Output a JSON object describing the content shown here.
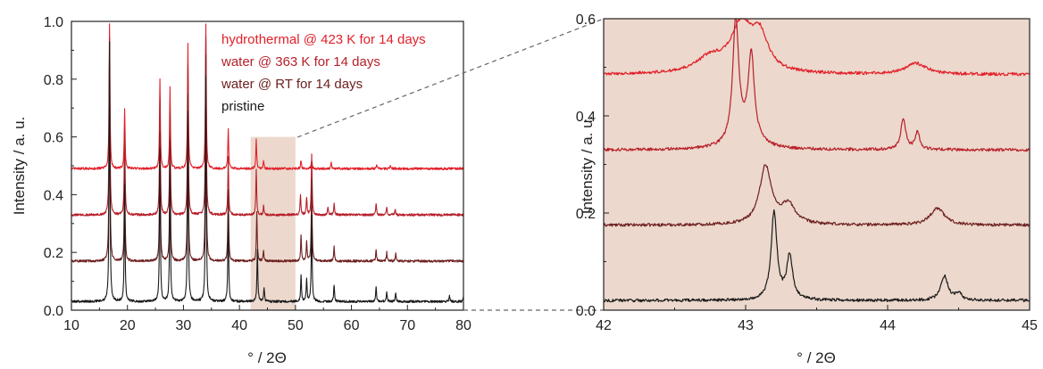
{
  "chart_data": [
    {
      "type": "line",
      "xlabel": "° / 2Θ",
      "ylabel": "Intensity / a. u.",
      "xlim": [
        10,
        80
      ],
      "ylim": [
        0.0,
        1.0
      ],
      "xticks": [
        "10",
        "20",
        "30",
        "40",
        "50",
        "60",
        "70",
        "80"
      ],
      "yticks": [
        "0.0",
        "0.2",
        "0.4",
        "0.6",
        "0.8",
        "1.0"
      ],
      "grid": false,
      "legend_position": "top-center",
      "highlight_region": {
        "x": [
          42,
          50
        ],
        "y": [
          0.0,
          0.6
        ],
        "color": "#ecd8cc"
      },
      "series": [
        {
          "name": "hydrothermal @ 423 K for 14 days",
          "color": "#e2202a",
          "baseline": 0.49,
          "peaks": [
            [
              16.8,
              0.5
            ],
            [
              19.5,
              0.21
            ],
            [
              25.8,
              0.31
            ],
            [
              27.6,
              0.28
            ],
            [
              30.8,
              0.43
            ],
            [
              34.0,
              0.5
            ],
            [
              38.0,
              0.14
            ],
            [
              43.0,
              0.1
            ],
            [
              44.3,
              0.03
            ],
            [
              51.0,
              0.03
            ],
            [
              52.9,
              0.03
            ],
            [
              56.4,
              0.02
            ],
            [
              64.5,
              0.015
            ],
            [
              67.0,
              0.01
            ]
          ]
        },
        {
          "name": "water @ 363 K for 14 days",
          "color": "#b8202a",
          "baseline": 0.33,
          "peaks": [
            [
              16.8,
              0.61
            ],
            [
              19.5,
              0.3
            ],
            [
              25.8,
              0.4
            ],
            [
              27.6,
              0.35
            ],
            [
              30.8,
              0.52
            ],
            [
              34.0,
              0.62
            ],
            [
              38.0,
              0.2
            ],
            [
              43.0,
              0.16
            ],
            [
              44.3,
              0.03
            ],
            [
              50.9,
              0.07
            ],
            [
              52.0,
              0.06
            ],
            [
              52.9,
              0.21
            ],
            [
              55.8,
              0.03
            ],
            [
              56.9,
              0.04
            ],
            [
              64.4,
              0.04
            ],
            [
              66.3,
              0.025
            ],
            [
              67.8,
              0.02
            ]
          ]
        },
        {
          "name": "water @ RT for 14 days",
          "color": "#6e2020",
          "baseline": 0.17,
          "peaks": [
            [
              16.8,
              0.76
            ],
            [
              19.5,
              0.34
            ],
            [
              25.8,
              0.45
            ],
            [
              27.6,
              0.42
            ],
            [
              30.8,
              0.58
            ],
            [
              34.0,
              0.71
            ],
            [
              38.0,
              0.25
            ],
            [
              43.1,
              0.17
            ],
            [
              44.3,
              0.035
            ],
            [
              51.0,
              0.09
            ],
            [
              52.0,
              0.07
            ],
            [
              52.9,
              0.28
            ],
            [
              56.9,
              0.05
            ],
            [
              64.4,
              0.04
            ],
            [
              66.3,
              0.03
            ],
            [
              67.9,
              0.025
            ]
          ]
        },
        {
          "name": "pristine",
          "color": "#1a1a1a",
          "baseline": 0.03,
          "peaks": [
            [
              16.8,
              0.9
            ],
            [
              19.5,
              0.4
            ],
            [
              25.8,
              0.53
            ],
            [
              27.6,
              0.48
            ],
            [
              30.8,
              0.66
            ],
            [
              34.0,
              0.78
            ],
            [
              38.0,
              0.3
            ],
            [
              43.2,
              0.18
            ],
            [
              44.4,
              0.05
            ],
            [
              51.0,
              0.09
            ],
            [
              52.0,
              0.08
            ],
            [
              52.9,
              0.3
            ],
            [
              56.9,
              0.06
            ],
            [
              64.4,
              0.05
            ],
            [
              66.3,
              0.035
            ],
            [
              67.9,
              0.03
            ],
            [
              77.5,
              0.02
            ],
            [
              80.0,
              0.02
            ]
          ]
        }
      ]
    },
    {
      "type": "line",
      "xlabel": "° / 2Θ",
      "ylabel": "Intensity / a. u.",
      "xlim": [
        42,
        45
      ],
      "ylim": [
        0.0,
        0.6
      ],
      "xticks": [
        "42",
        "43",
        "44",
        "45"
      ],
      "yticks": [
        "0.0",
        "0.2",
        "0.4",
        "0.6"
      ],
      "grid": false,
      "background": "#ecd8cc",
      "series": [
        {
          "color": "#e2202a",
          "baseline": 0.485,
          "peaks": [
            [
              42.75,
              0.03,
              0.12
            ],
            [
              42.97,
              0.095,
              0.09
            ],
            [
              43.1,
              0.07,
              0.07
            ],
            [
              44.2,
              0.022,
              0.09
            ]
          ]
        },
        {
          "color": "#b8202a",
          "baseline": 0.33,
          "peaks": [
            [
              42.93,
              0.25,
              0.025
            ],
            [
              43.04,
              0.17,
              0.025
            ],
            [
              43.0,
              0.03,
              0.1
            ],
            [
              44.11,
              0.065,
              0.02
            ],
            [
              44.21,
              0.035,
              0.02
            ]
          ]
        },
        {
          "color": "#6e2020",
          "baseline": 0.175,
          "peaks": [
            [
              43.14,
              0.12,
              0.05
            ],
            [
              43.3,
              0.04,
              0.06
            ],
            [
              44.35,
              0.035,
              0.06
            ]
          ]
        },
        {
          "color": "#1a1a1a",
          "baseline": 0.02,
          "peaks": [
            [
              43.2,
              0.18,
              0.025
            ],
            [
              43.31,
              0.09,
              0.025
            ],
            [
              44.4,
              0.05,
              0.03
            ],
            [
              44.5,
              0.015,
              0.025
            ]
          ]
        }
      ]
    }
  ]
}
